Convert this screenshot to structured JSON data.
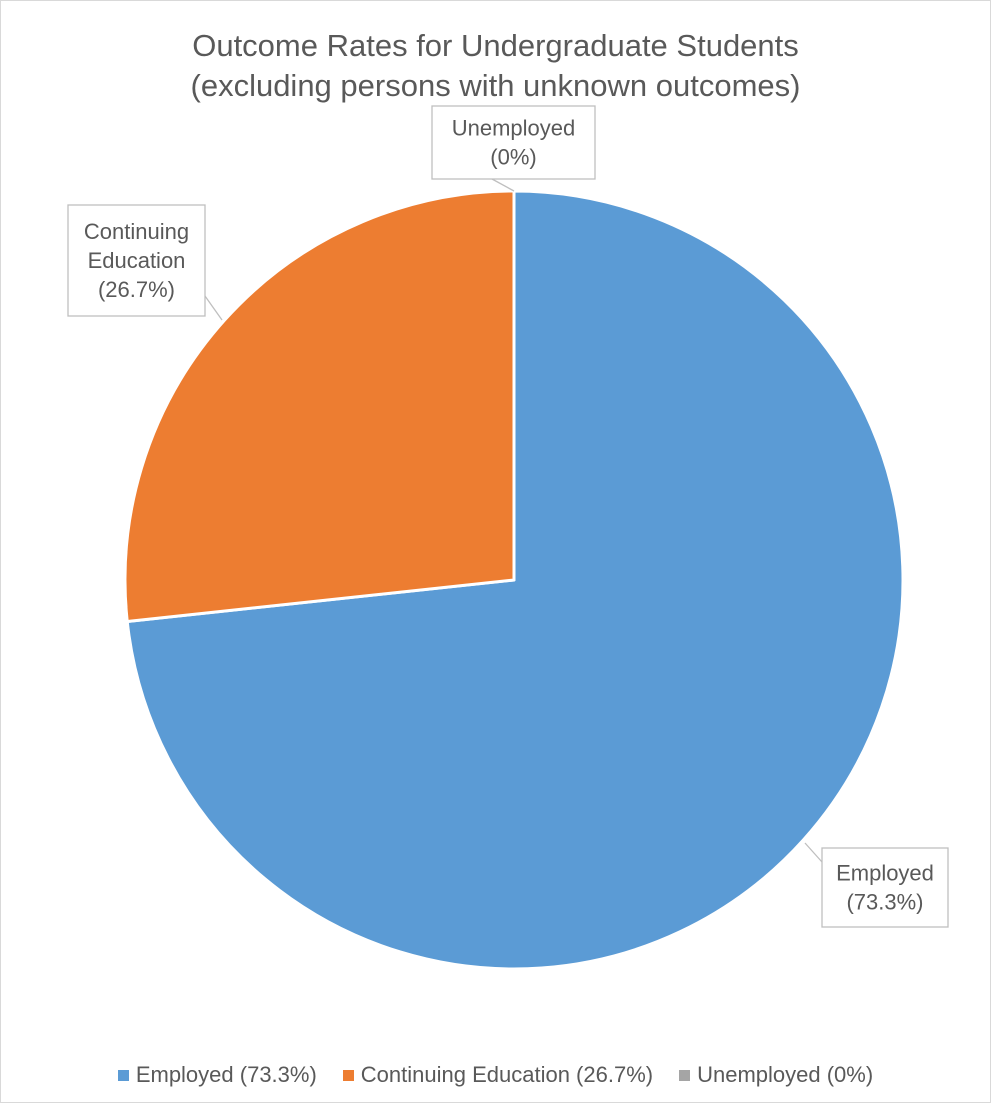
{
  "chart_data": {
    "type": "pie",
    "title": [
      "Outcome Rates for Undergraduate Students",
      "(excluding persons with unknown outcomes)"
    ],
    "categories": [
      "Employed (73.3%)",
      "Continuing Education (26.7%)",
      "Unemployed (0%)"
    ],
    "values": [
      73.3,
      26.7,
      0
    ],
    "colors": [
      "#5b9bd5",
      "#ed7d31",
      "#a5a5a5"
    ],
    "data_labels": [
      [
        "Employed",
        "(73.3%)"
      ],
      [
        "Continuing",
        "Education",
        "(26.7%)"
      ],
      [
        "Unemployed",
        "(0%)"
      ]
    ],
    "start_angle_deg": 0,
    "direction": "clockwise",
    "legend": "bottom"
  }
}
